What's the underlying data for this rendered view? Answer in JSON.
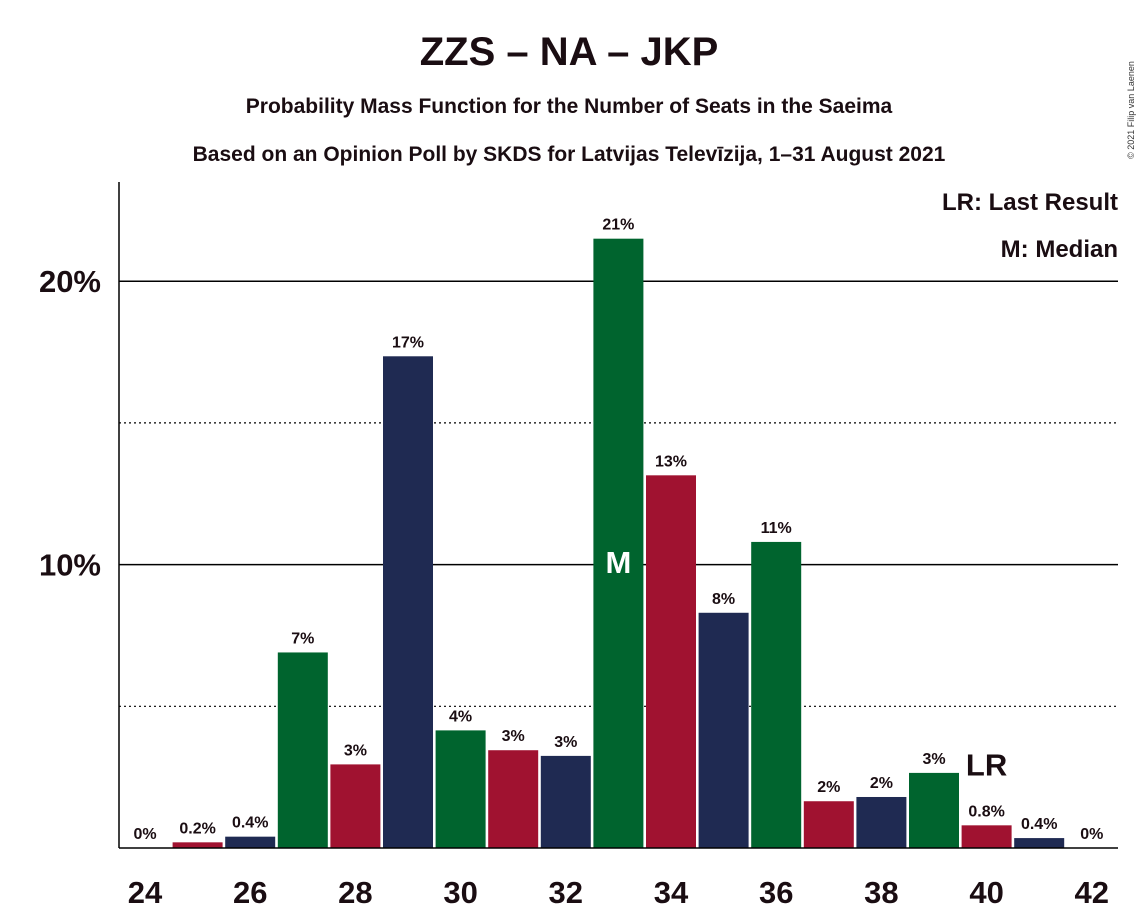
{
  "chart_data": {
    "type": "bar",
    "title": "ZZS – NA – JKP",
    "subtitle1": "Probability Mass Function for the Number of Seats in the Saeima",
    "subtitle2": "Based on an Opinion Poll by SKDS for Latvijas Televīzija, 1–31 August 2021",
    "copyright": "© 2021 Filip van Laenen",
    "legend": [
      "LR: Last Result",
      "M: Median"
    ],
    "legend_position": "top-right",
    "ylim": [
      0,
      23.5
    ],
    "yticks": [
      {
        "value": 10,
        "label": "10%"
      },
      {
        "value": 20,
        "label": "20%"
      }
    ],
    "dotted_gridlines": [
      5,
      15
    ],
    "xticks": [
      24,
      26,
      28,
      30,
      32,
      34,
      36,
      38,
      40,
      42
    ],
    "median_seat": 33,
    "median_label": "M",
    "last_result_seat": 40,
    "last_result_label": "LR",
    "bars": [
      {
        "seat": 24,
        "value": 0,
        "label": "0%",
        "color": "#1f2a52"
      },
      {
        "seat": 25,
        "value": 0.2,
        "label": "0.2%",
        "color": "#a01230"
      },
      {
        "seat": 26,
        "value": 0.4,
        "label": "0.4%",
        "color": "#1f2a52"
      },
      {
        "seat": 27,
        "value": 6.9,
        "label": "7%",
        "color": "#00642e"
      },
      {
        "seat": 28,
        "value": 2.95,
        "label": "3%",
        "color": "#a01230"
      },
      {
        "seat": 29,
        "value": 17.35,
        "label": "17%",
        "color": "#1f2a52"
      },
      {
        "seat": 30,
        "value": 4.15,
        "label": "4%",
        "color": "#00642e"
      },
      {
        "seat": 31,
        "value": 3.45,
        "label": "3%",
        "color": "#a01230"
      },
      {
        "seat": 32,
        "value": 3.25,
        "label": "3%",
        "color": "#1f2a52"
      },
      {
        "seat": 33,
        "value": 21.5,
        "label": "21%",
        "color": "#00642e"
      },
      {
        "seat": 34,
        "value": 13.15,
        "label": "13%",
        "color": "#a01230"
      },
      {
        "seat": 35,
        "value": 8.3,
        "label": "8%",
        "color": "#1f2a52"
      },
      {
        "seat": 36,
        "value": 10.8,
        "label": "11%",
        "color": "#00642e"
      },
      {
        "seat": 37,
        "value": 1.65,
        "label": "2%",
        "color": "#a01230"
      },
      {
        "seat": 38,
        "value": 1.8,
        "label": "2%",
        "color": "#1f2a52"
      },
      {
        "seat": 39,
        "value": 2.65,
        "label": "3%",
        "color": "#00642e"
      },
      {
        "seat": 40,
        "value": 0.8,
        "label": "0.8%",
        "color": "#a01230"
      },
      {
        "seat": 41,
        "value": 0.35,
        "label": "0.4%",
        "color": "#1f2a52"
      },
      {
        "seat": 42,
        "value": 0,
        "label": "0%",
        "color": "#00642e"
      }
    ]
  }
}
